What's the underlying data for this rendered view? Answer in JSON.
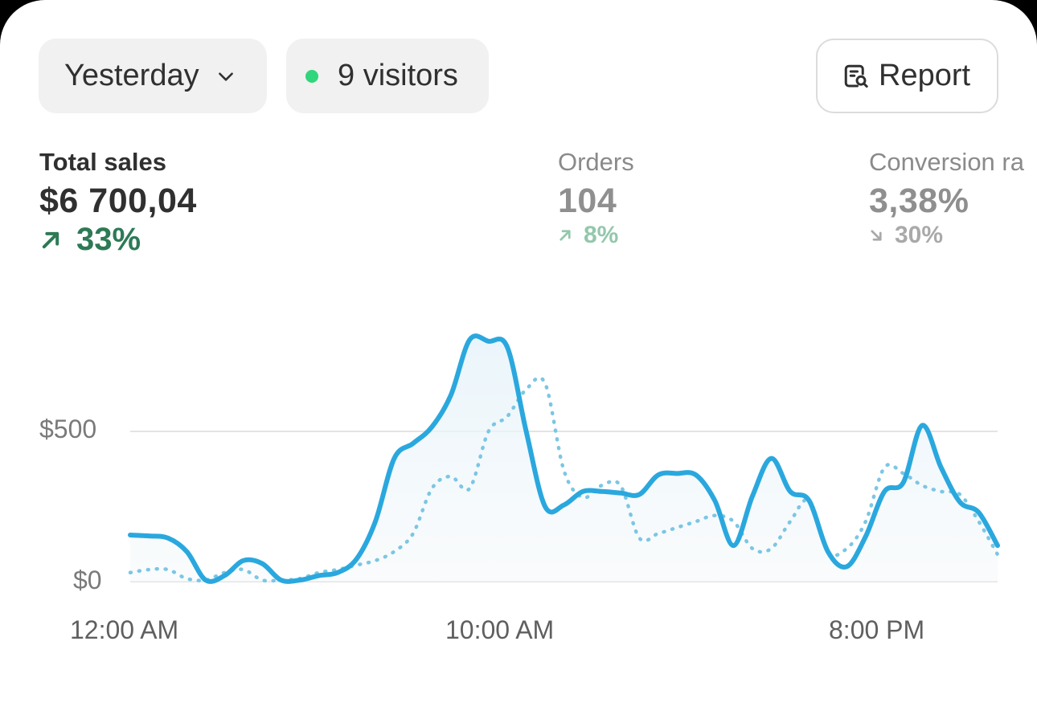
{
  "filters": {
    "date_label": "Yesterday",
    "visitors_label": "9 visitors",
    "report_label": "Report"
  },
  "metrics": {
    "total_sales": {
      "label": "Total sales",
      "value": "$6 700,04",
      "change": "33%",
      "direction": "up"
    },
    "orders": {
      "label": "Orders",
      "value": "104",
      "change": "8%",
      "direction": "up"
    },
    "conversion": {
      "label": "Conversion ra",
      "value": "3,38%",
      "change": "30%",
      "direction": "down"
    }
  },
  "colors": {
    "primary_line": "#2aa8de",
    "comparison_line": "#7cc6e3",
    "positive": "#2d7a55",
    "online_dot": "#2fd67b"
  },
  "icons": {
    "date": "chevron-down-icon",
    "visitors": "online-dot-icon",
    "report": "report-search-icon",
    "change_up": "arrow-up-right-icon",
    "change_down": "arrow-down-right-icon"
  },
  "chart_data": {
    "type": "line",
    "y_ticks": [
      "$500",
      "$0"
    ],
    "x_ticks": [
      "12:00 AM",
      "10:00 AM",
      "8:00 PM"
    ],
    "ylim": [
      0,
      800
    ],
    "x": [
      0,
      0.5,
      1,
      1.5,
      2,
      2.5,
      3,
      3.5,
      4,
      4.5,
      5,
      5.5,
      6,
      6.5,
      7,
      7.5,
      8,
      8.5,
      9,
      9.5,
      10,
      10.5,
      11,
      11.5,
      12,
      12.5,
      13,
      13.5,
      14,
      14.5,
      15,
      15.5,
      16,
      16.5,
      17,
      17.5,
      18,
      18.5,
      19,
      19.5,
      20,
      20.5,
      21,
      21.5,
      22,
      22.5,
      23
    ],
    "series": [
      {
        "style": "solid",
        "values": [
          155,
          152,
          145,
          100,
          5,
          20,
          70,
          60,
          5,
          5,
          20,
          30,
          75,
          200,
          410,
          460,
          515,
          620,
          805,
          800,
          780,
          500,
          250,
          255,
          300,
          300,
          295,
          290,
          355,
          360,
          355,
          270,
          120,
          285,
          410,
          300,
          270,
          100,
          50,
          150,
          300,
          330,
          520,
          380,
          265,
          230,
          120
        ]
      },
      {
        "style": "dotted",
        "values": [
          30,
          40,
          40,
          10,
          5,
          30,
          40,
          5,
          5,
          10,
          30,
          40,
          55,
          70,
          100,
          160,
          310,
          350,
          310,
          500,
          550,
          640,
          660,
          370,
          280,
          320,
          320,
          145,
          160,
          180,
          200,
          220,
          200,
          110,
          110,
          200,
          270,
          100,
          110,
          200,
          380,
          360,
          320,
          300,
          290,
          200,
          90
        ]
      }
    ],
    "grid": true
  }
}
